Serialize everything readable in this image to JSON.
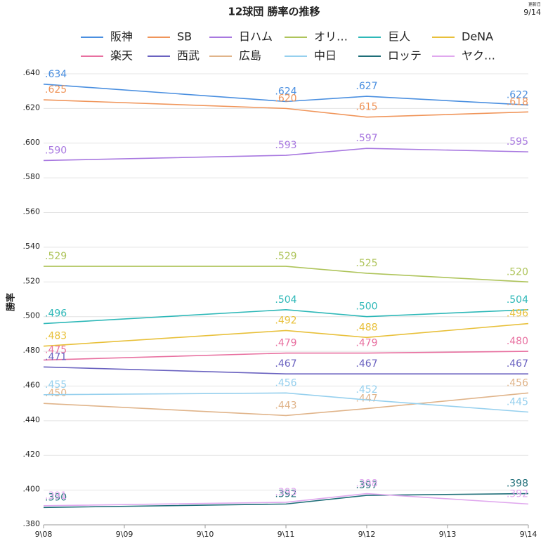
{
  "chart_data": {
    "type": "line",
    "title": "12球団 勝率の推移",
    "update_label": "更新日",
    "update_date": "9/14",
    "y_label": "勝率",
    "x": [
      8,
      11,
      12,
      14
    ],
    "xlim": [
      8,
      14
    ],
    "xticks": [
      {
        "value": 8,
        "label": "9\\08"
      },
      {
        "value": 9,
        "label": "9\\09"
      },
      {
        "value": 10,
        "label": "9\\10"
      },
      {
        "value": 11,
        "label": "9\\11"
      },
      {
        "value": 12,
        "label": "9\\12"
      },
      {
        "value": 13,
        "label": "9\\13"
      },
      {
        "value": 14,
        "label": "9\\14"
      }
    ],
    "ylim": [
      0.38,
      0.64
    ],
    "yticks": [
      {
        "value": 0.38,
        "label": ".380"
      },
      {
        "value": 0.4,
        "label": ".400"
      },
      {
        "value": 0.42,
        "label": ".420"
      },
      {
        "value": 0.44,
        "label": ".440"
      },
      {
        "value": 0.46,
        "label": ".460"
      },
      {
        "value": 0.48,
        "label": ".480"
      },
      {
        "value": 0.5,
        "label": ".500"
      },
      {
        "value": 0.52,
        "label": ".520"
      },
      {
        "value": 0.54,
        "label": ".540"
      },
      {
        "value": 0.56,
        "label": ".560"
      },
      {
        "value": 0.58,
        "label": ".580"
      },
      {
        "value": 0.6,
        "label": ".600"
      },
      {
        "value": 0.62,
        "label": ".620"
      },
      {
        "value": 0.64,
        "label": ".640"
      }
    ],
    "grid": true,
    "legend": "top",
    "series": [
      {
        "name": "阪神",
        "color": "#4a8fe0",
        "values": [
          0.634,
          0.624,
          0.627,
          0.622
        ],
        "value_labels": [
          ".634",
          ".624",
          ".627",
          ".622"
        ]
      },
      {
        "name": "SB",
        "color": "#f0955a",
        "values": [
          0.625,
          0.62,
          0.615,
          0.618
        ],
        "value_labels": [
          ".625",
          ".620",
          ".615",
          ".618"
        ]
      },
      {
        "name": "日ハム",
        "color": "#a878e0",
        "values": [
          0.59,
          0.593,
          0.597,
          0.595
        ],
        "value_labels": [
          ".590",
          ".593",
          ".597",
          ".595"
        ]
      },
      {
        "name": "オリ…",
        "color": "#aec45a",
        "values": [
          0.529,
          0.529,
          0.525,
          0.52
        ],
        "value_labels": [
          ".529",
          ".529",
          ".525",
          ".520"
        ]
      },
      {
        "name": "巨人",
        "color": "#2eb8b8",
        "values": [
          0.496,
          0.504,
          0.5,
          0.504
        ],
        "value_labels": [
          ".496",
          ".504",
          ".500",
          ".504"
        ]
      },
      {
        "name": "DeNA",
        "color": "#e8c03a",
        "values": [
          0.483,
          0.492,
          0.488,
          0.496
        ],
        "value_labels": [
          ".483",
          ".492",
          ".488",
          ".496"
        ]
      },
      {
        "name": "楽天",
        "color": "#e870a0",
        "values": [
          0.475,
          0.479,
          0.479,
          0.48
        ],
        "value_labels": [
          ".475",
          ".479",
          ".479",
          ".480"
        ]
      },
      {
        "name": "西武",
        "color": "#6a62c0",
        "values": [
          0.471,
          0.467,
          0.467,
          0.467
        ],
        "value_labels": [
          ".471",
          ".467",
          ".467",
          ".467"
        ]
      },
      {
        "name": "広島",
        "color": "#e0b48a",
        "values": [
          0.45,
          0.443,
          0.447,
          0.456
        ],
        "value_labels": [
          ".450",
          ".443",
          ".447",
          ".456"
        ]
      },
      {
        "name": "中日",
        "color": "#96d0ee",
        "values": [
          0.455,
          0.456,
          0.452,
          0.445
        ],
        "value_labels": [
          ".455",
          ".456",
          ".452",
          ".445"
        ]
      },
      {
        "name": "ロッテ",
        "color": "#1e6e78",
        "values": [
          0.39,
          0.392,
          0.397,
          0.398
        ],
        "value_labels": [
          ".390",
          ".392",
          ".397",
          ".398"
        ]
      },
      {
        "name": "ヤク…",
        "color": "#e0a8ee",
        "values": [
          0.391,
          0.393,
          0.398,
          0.392
        ],
        "value_labels": [
          ".391",
          ".393",
          ".398",
          ".392"
        ]
      }
    ]
  }
}
